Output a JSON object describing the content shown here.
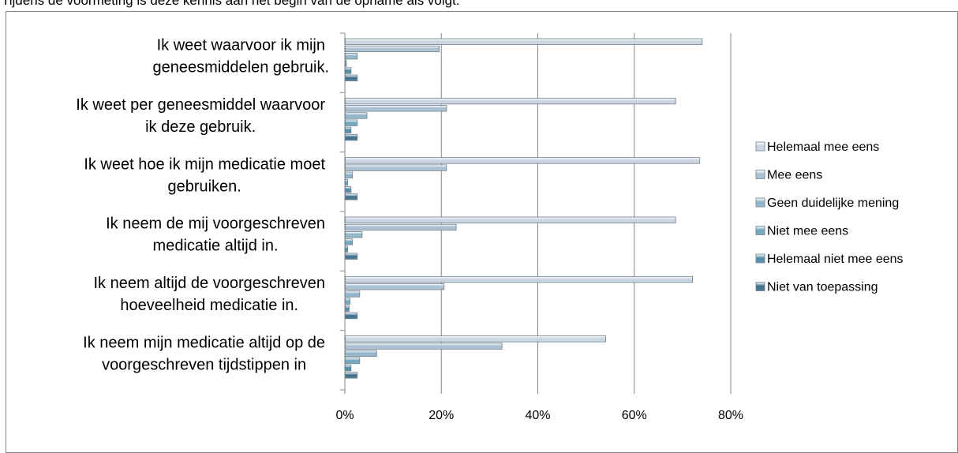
{
  "document": {
    "text_above": "Tijdens de voormeting is deze kennis aan het begin van de opname als volgt:"
  },
  "chart_data": {
    "type": "bar",
    "orientation": "horizontal",
    "title": "",
    "xlabel": "",
    "ylabel": "",
    "xlim": [
      0,
      0.8
    ],
    "x_ticks": [
      0,
      0.2,
      0.4,
      0.6,
      0.8
    ],
    "x_tick_labels": [
      "0%",
      "20%",
      "40%",
      "60%",
      "80%"
    ],
    "grid": true,
    "legend_position": "right",
    "categories": [
      [
        "Ik weet waarvoor ik mijn",
        "geneesmiddelen gebruik."
      ],
      [
        "Ik weet per geneesmiddel waarvoor",
        "ik deze gebruik."
      ],
      [
        "Ik weet hoe ik mijn medicatie moet",
        "gebruiken."
      ],
      [
        "Ik neem de mij voorgeschreven",
        "medicatie altijd in."
      ],
      [
        "Ik neem altijd de voorgeschreven",
        "hoeveelheid medicatie in."
      ],
      [
        "Ik neem mijn medicatie altijd op de",
        "voorgeschreven tijdstippen in"
      ]
    ],
    "series": [
      {
        "name": "Helemaal mee eens",
        "color": "#c8d4e0",
        "values": [
          0.74,
          0.685,
          0.735,
          0.685,
          0.72,
          0.54
        ]
      },
      {
        "name": "Mee eens",
        "color": "#a9bfd1",
        "values": [
          0.195,
          0.21,
          0.21,
          0.23,
          0.205,
          0.325
        ]
      },
      {
        "name": "Geen duidelijke mening",
        "color": "#8fb4c8",
        "values": [
          0.025,
          0.045,
          0.015,
          0.035,
          0.03,
          0.065
        ]
      },
      {
        "name": "Niet mee eens",
        "color": "#6ea6bd",
        "values": [
          0.0,
          0.025,
          0.005,
          0.015,
          0.01,
          0.03
        ]
      },
      {
        "name": "Helemaal niet mee eens",
        "color": "#4f8aa6",
        "values": [
          0.012,
          0.012,
          0.012,
          0.005,
          0.008,
          0.012
        ]
      },
      {
        "name": "Niet van toepassing",
        "color": "#3d6f8c",
        "values": [
          0.025,
          0.025,
          0.025,
          0.025,
          0.025,
          0.025
        ]
      }
    ]
  }
}
